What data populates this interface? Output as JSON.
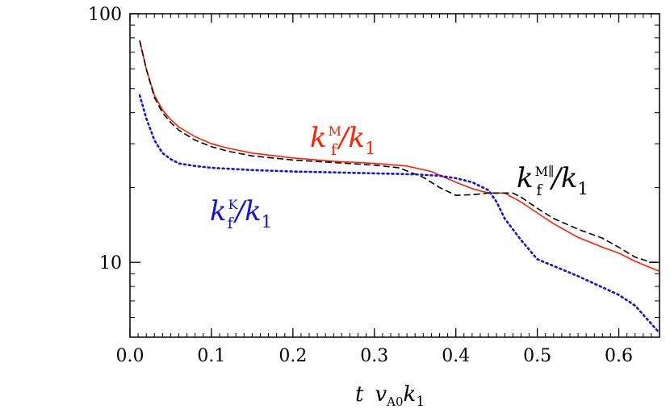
{
  "chart_data": {
    "type": "line",
    "xlabel": {
      "var": "t",
      "v": "v",
      "v_sub": "A0",
      "k": "k",
      "k_sub": "1"
    },
    "xlim": [
      0.0,
      0.65
    ],
    "ylim": [
      5,
      100
    ],
    "yscale": "log",
    "grid": false,
    "xticks": [
      0.0,
      0.1,
      0.2,
      0.3,
      0.4,
      0.5,
      0.6
    ],
    "xtick_labels": [
      "0.0",
      "0.1",
      "0.2",
      "0.3",
      "0.4",
      "0.5",
      "0.6"
    ],
    "yticks": [
      10,
      100
    ],
    "ytick_labels": [
      "10",
      "100"
    ],
    "series": [
      {
        "id": "kfM",
        "color": "#ff2000",
        "style": "solid",
        "label": {
          "k": "k",
          "sub": "f",
          "sup": "M",
          "den": "/k",
          "den_sub": "1"
        },
        "x": [
          0.012,
          0.02,
          0.03,
          0.04,
          0.05,
          0.06,
          0.08,
          0.1,
          0.12,
          0.15,
          0.2,
          0.25,
          0.3,
          0.34,
          0.37,
          0.4,
          0.42,
          0.44,
          0.46,
          0.48,
          0.5,
          0.52,
          0.55,
          0.58,
          0.6,
          0.62,
          0.65
        ],
        "y": [
          78,
          60,
          47,
          41,
          37.5,
          35,
          32,
          30,
          28.8,
          27.5,
          26.3,
          25.5,
          25,
          24.4,
          23.2,
          21,
          19.8,
          19.0,
          19.0,
          17.5,
          15.8,
          14.3,
          12.6,
          11.5,
          10.9,
          10.1,
          9.2
        ]
      },
      {
        "id": "kfMpar",
        "color": "#000000",
        "style": "dashed",
        "label": {
          "k": "k",
          "sub": "f",
          "sup": "M∥",
          "den": "/k",
          "den_sub": "1"
        },
        "x": [
          0.012,
          0.02,
          0.03,
          0.04,
          0.05,
          0.06,
          0.08,
          0.1,
          0.12,
          0.15,
          0.2,
          0.25,
          0.3,
          0.33,
          0.36,
          0.38,
          0.4,
          0.42,
          0.44,
          0.46,
          0.47,
          0.48,
          0.5,
          0.52,
          0.55,
          0.58,
          0.6,
          0.62,
          0.64,
          0.65
        ],
        "y": [
          78,
          60,
          46,
          40,
          36.5,
          34,
          31,
          29.2,
          28.0,
          26.8,
          25.8,
          25.2,
          24.6,
          24.0,
          22.0,
          20.0,
          18.6,
          18.7,
          19.0,
          19.0,
          19.0,
          18.3,
          16.5,
          15.0,
          13.6,
          12.5,
          11.5,
          10.5,
          10.0,
          10.0
        ]
      },
      {
        "id": "kfK",
        "color": "#1010e0",
        "style": "dotted",
        "label": {
          "k": "k",
          "sub": "f",
          "sup": "K",
          "den": "/k",
          "den_sub": "1"
        },
        "x": [
          0.012,
          0.02,
          0.03,
          0.04,
          0.05,
          0.06,
          0.08,
          0.1,
          0.15,
          0.2,
          0.25,
          0.3,
          0.35,
          0.38,
          0.4,
          0.42,
          0.44,
          0.45,
          0.46,
          0.48,
          0.5,
          0.55,
          0.6,
          0.62,
          0.65
        ],
        "y": [
          47,
          38,
          31,
          27.5,
          26,
          25,
          24.4,
          24,
          23.5,
          23.2,
          23,
          22.8,
          22.6,
          22.3,
          21.8,
          21.0,
          19.5,
          17.5,
          15.0,
          12.3,
          10.3,
          8.8,
          7.4,
          6.7,
          5.2
        ]
      }
    ]
  }
}
